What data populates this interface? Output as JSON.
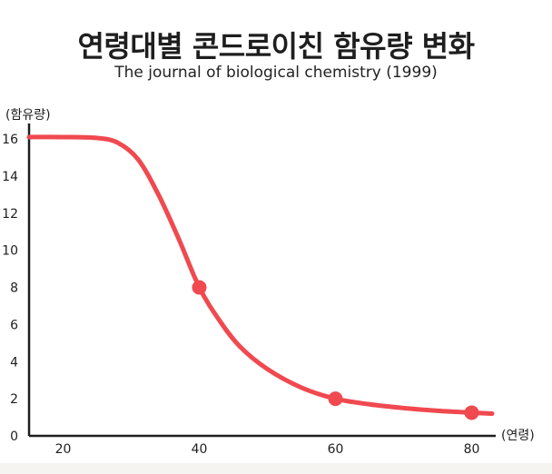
{
  "chart_data": {
    "type": "line",
    "title": "연령대별 콘드로이친 함유량 변화",
    "subtitle": "The journal of biological chemistry (1999)",
    "xlabel": "(연령)",
    "ylabel": "(함유량)",
    "xlim": [
      15,
      83
    ],
    "ylim": [
      0,
      16
    ],
    "x_ticks": [
      20,
      40,
      60,
      80
    ],
    "y_ticks": [
      0,
      2,
      4,
      6,
      8,
      10,
      12,
      14,
      16
    ],
    "grid": false,
    "series": [
      {
        "color": "#f0494f",
        "x": [
          15,
          20,
          25,
          28,
          31,
          34,
          37,
          40,
          43,
          46,
          50,
          55,
          60,
          65,
          70,
          75,
          80,
          83
        ],
        "values": [
          16.1,
          16.1,
          16.05,
          15.8,
          14.9,
          13.0,
          10.6,
          8.0,
          6.2,
          4.8,
          3.6,
          2.6,
          2.0,
          1.7,
          1.5,
          1.35,
          1.25,
          1.2
        ]
      }
    ],
    "markers": [
      {
        "x": 40,
        "y": 8.0
      },
      {
        "x": 60,
        "y": 2.0
      },
      {
        "x": 80,
        "y": 1.25
      }
    ]
  }
}
